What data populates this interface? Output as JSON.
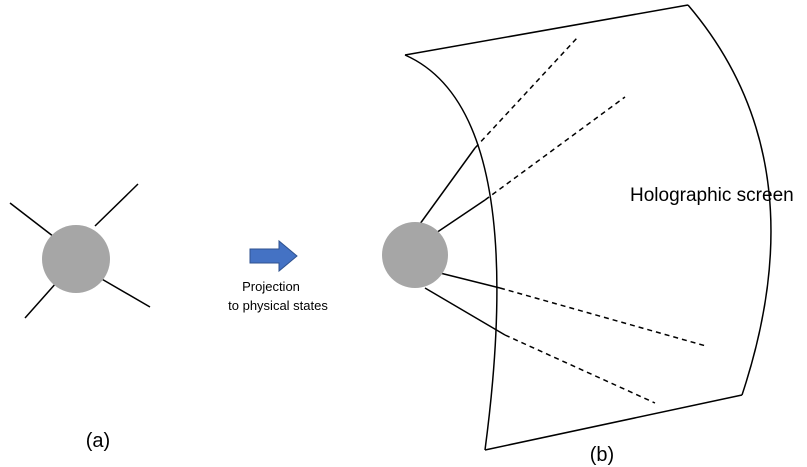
{
  "panels": {
    "a": {
      "label": "(a)"
    },
    "b": {
      "label": "(b)"
    }
  },
  "arrow": {
    "color": "#4472c4",
    "caption_line1": "Projection",
    "caption_line2": "to physical states"
  },
  "screen": {
    "label": "Holographic screen"
  },
  "colors": {
    "node": "#a6a6a6",
    "stroke": "#000000"
  }
}
